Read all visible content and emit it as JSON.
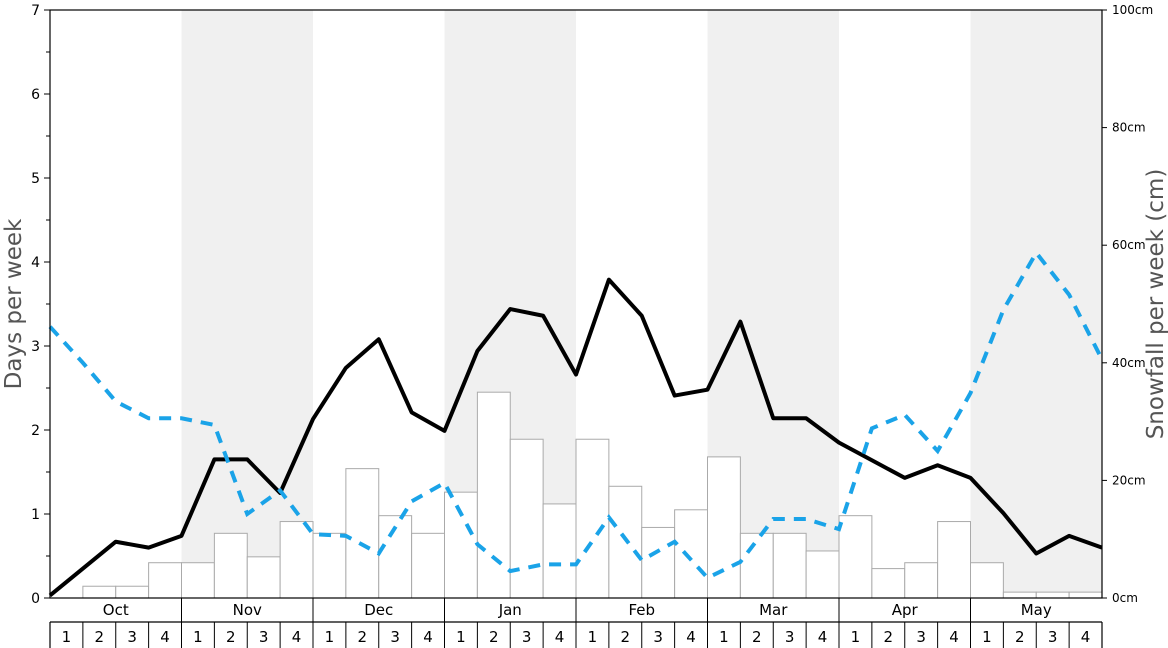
{
  "chart_data": {
    "type": "bar",
    "ylabel": "Days per week",
    "ylabel_right": "Snowfall per week (cm)",
    "months": [
      "Oct",
      "Nov",
      "Dec",
      "Jan",
      "Feb",
      "Mar",
      "Apr",
      "May"
    ],
    "week_labels": [
      "1",
      "2",
      "3",
      "4"
    ],
    "y_left_ticks": [
      "0",
      "1",
      "2",
      "3",
      "4",
      "5",
      "6",
      "7"
    ],
    "y_right_ticks": [
      "0cm",
      "20cm",
      "40cm",
      "60cm",
      "80cm",
      "100cm"
    ],
    "ylim_left": [
      0,
      7
    ],
    "ylim_right": [
      0,
      100
    ],
    "shaded_months": [
      "Nov",
      "Jan",
      "Mar",
      "May"
    ],
    "shade_color": "#f0f0f0",
    "series": [
      {
        "kind": "bar",
        "axis": "right",
        "color": "#ffffff",
        "edge_color": "#aaaaaa",
        "values": [
          0,
          2,
          2,
          6,
          6,
          11,
          7,
          13,
          11,
          22,
          14,
          11,
          18,
          35,
          27,
          16,
          27,
          19,
          12,
          15,
          24,
          11,
          11,
          8,
          14,
          5,
          6,
          13,
          6,
          1,
          1,
          1
        ]
      },
      {
        "kind": "line",
        "axis": "left",
        "color": "#000000",
        "values": [
          0.03,
          0.35,
          0.67,
          0.6,
          0.74,
          1.65,
          1.65,
          1.25,
          2.13,
          2.74,
          3.08,
          2.21,
          1.99,
          2.94,
          3.44,
          3.36,
          2.66,
          3.79,
          3.36,
          2.41,
          2.48,
          3.29,
          2.14,
          2.14,
          1.85,
          1.64,
          1.43,
          1.58,
          1.43,
          1.01,
          0.53,
          0.74,
          0.6
        ]
      },
      {
        "kind": "line",
        "axis": "left",
        "style": "dashed",
        "color": "#1aa3e8",
        "values": [
          3.23,
          2.8,
          2.34,
          2.14,
          2.14,
          2.06,
          1.0,
          1.28,
          0.76,
          0.74,
          0.53,
          1.15,
          1.37,
          0.64,
          0.32,
          0.4,
          0.4,
          0.96,
          0.45,
          0.67,
          0.24,
          0.43,
          0.94,
          0.94,
          0.82,
          2.02,
          2.18,
          1.75,
          2.44,
          3.43,
          4.11,
          3.61,
          2.84
        ]
      }
    ]
  }
}
